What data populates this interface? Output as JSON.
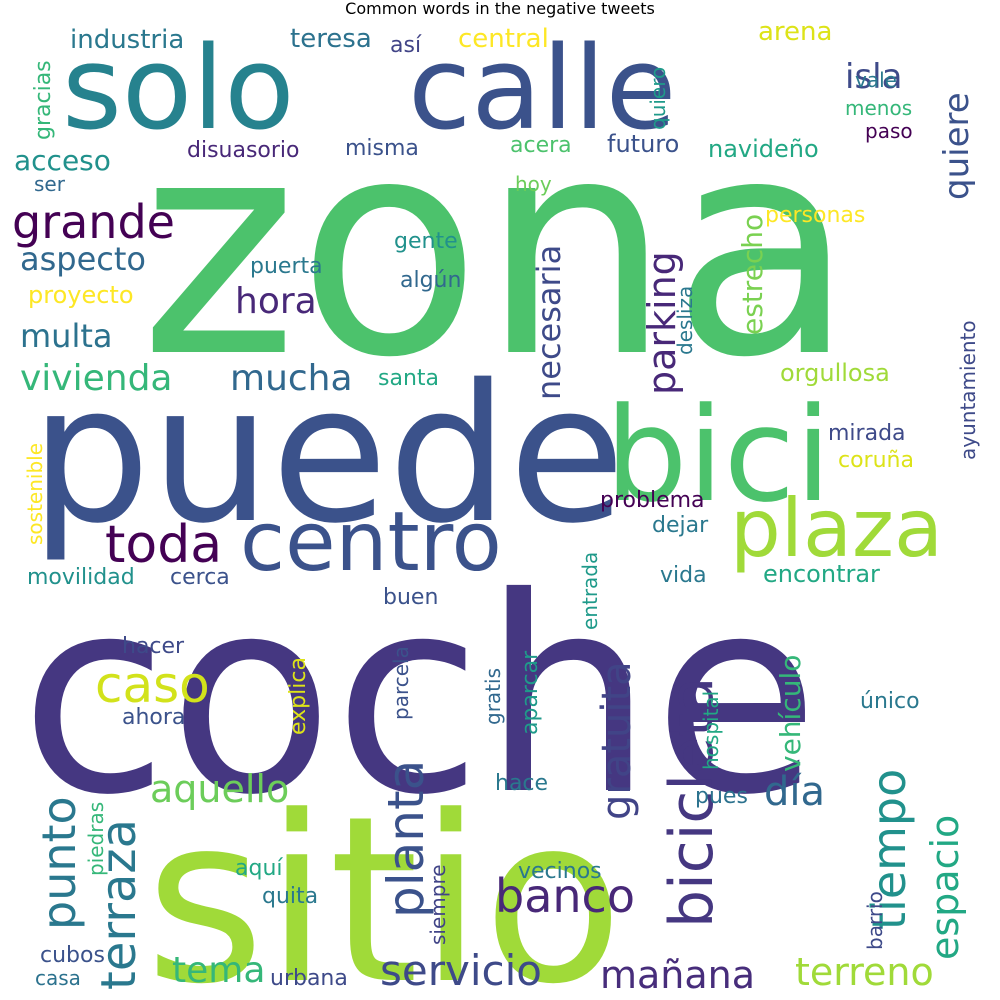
{
  "title": "Common words in the negative tweets",
  "words": [
    {
      "text": "zona",
      "color": "#4cc26c"
    },
    {
      "text": "coche",
      "color": "#453781"
    },
    {
      "text": "sitio",
      "color": "#a0da39"
    },
    {
      "text": "puede",
      "color": "#3b528b"
    },
    {
      "text": "solo",
      "color": "#26828e"
    },
    {
      "text": "calle",
      "color": "#3b528b"
    },
    {
      "text": "bici",
      "color": "#4cc26c"
    },
    {
      "text": "centro",
      "color": "#3b528b"
    },
    {
      "text": "plaza",
      "color": "#a0da39"
    },
    {
      "text": "toda",
      "color": "#440154"
    },
    {
      "text": "grande",
      "color": "#440154"
    },
    {
      "text": "bicicleta",
      "color": "#453781"
    },
    {
      "text": "caso",
      "color": "#d2e21b"
    },
    {
      "text": "planta",
      "color": "#3b528b"
    },
    {
      "text": "terraza",
      "color": "#2a788e"
    },
    {
      "text": "punto",
      "color": "#2a788e"
    },
    {
      "text": "tiempo",
      "color": "#21918c"
    },
    {
      "text": "banco",
      "color": "#482878"
    },
    {
      "text": "servicio",
      "color": "#3e4a89"
    },
    {
      "text": "día",
      "color": "#31688e"
    },
    {
      "text": "aquello",
      "color": "#6ccd5a"
    },
    {
      "text": "mañana",
      "color": "#472d7b"
    },
    {
      "text": "terreno",
      "color": "#a0da39"
    },
    {
      "text": "espacio",
      "color": "#22a884"
    },
    {
      "text": "tema",
      "color": "#35b779"
    },
    {
      "text": "hora",
      "color": "#482878"
    },
    {
      "text": "mucha",
      "color": "#31688e"
    },
    {
      "text": "vivienda",
      "color": "#35b779"
    },
    {
      "text": "multa",
      "color": "#2c728e"
    },
    {
      "text": "aspecto",
      "color": "#31688e"
    },
    {
      "text": "acceso",
      "color": "#21918c"
    },
    {
      "text": "isla",
      "color": "#3e4a89"
    },
    {
      "text": "quiere",
      "color": "#3b528b"
    },
    {
      "text": "parking",
      "color": "#482878"
    },
    {
      "text": "necesaria",
      "color": "#3e4a89"
    },
    {
      "text": "estrecho",
      "color": "#7ad151"
    },
    {
      "text": "gratuita",
      "color": "#414487"
    },
    {
      "text": "vehículo",
      "color": "#35b779"
    },
    {
      "text": "industria",
      "color": "#2a788e"
    },
    {
      "text": "teresa",
      "color": "#2c728e"
    },
    {
      "text": "así",
      "color": "#414487"
    },
    {
      "text": "central",
      "color": "#fde725"
    },
    {
      "text": "arena",
      "color": "#dde318"
    },
    {
      "text": "gracias",
      "color": "#35b779"
    },
    {
      "text": "quiero",
      "color": "#1f9a8a"
    },
    {
      "text": "vale",
      "color": "#2a788e"
    },
    {
      "text": "menos",
      "color": "#35b779"
    },
    {
      "text": "paso",
      "color": "#440154"
    },
    {
      "text": "disuasorio",
      "color": "#482878"
    },
    {
      "text": "misma",
      "color": "#3b528b"
    },
    {
      "text": "acera",
      "color": "#4cc26c"
    },
    {
      "text": "futuro",
      "color": "#3b528b"
    },
    {
      "text": "navideño",
      "color": "#22a884"
    },
    {
      "text": "ser",
      "color": "#31688e"
    },
    {
      "text": "hoy",
      "color": "#6ccd5a"
    },
    {
      "text": "personas",
      "color": "#fde725"
    },
    {
      "text": "gente",
      "color": "#21918c"
    },
    {
      "text": "algún",
      "color": "#31688e"
    },
    {
      "text": "puerta",
      "color": "#2a788e"
    },
    {
      "text": "proyecto",
      "color": "#fde725"
    },
    {
      "text": "desliza",
      "color": "#2a788e"
    },
    {
      "text": "ayuntamiento",
      "color": "#3e4a89"
    },
    {
      "text": "santa",
      "color": "#22a884"
    },
    {
      "text": "orgullosa",
      "color": "#a0da39"
    },
    {
      "text": "sostenible",
      "color": "#fde725"
    },
    {
      "text": "mirada",
      "color": "#3e4a89"
    },
    {
      "text": "coruña",
      "color": "#dde318"
    },
    {
      "text": "problema",
      "color": "#440154"
    },
    {
      "text": "dejar",
      "color": "#2a788e"
    },
    {
      "text": "entrada",
      "color": "#1f9a8a"
    },
    {
      "text": "movilidad",
      "color": "#21918c"
    },
    {
      "text": "cerca",
      "color": "#3b528b"
    },
    {
      "text": "vida",
      "color": "#2a788e"
    },
    {
      "text": "encontrar",
      "color": "#22a884"
    },
    {
      "text": "buen",
      "color": "#3b528b"
    },
    {
      "text": "hacer",
      "color": "#3e4a89"
    },
    {
      "text": "explica",
      "color": "#dde318"
    },
    {
      "text": "parcela",
      "color": "#3b528b"
    },
    {
      "text": "gratis",
      "color": "#31688e"
    },
    {
      "text": "aparcar",
      "color": "#1f9a8a"
    },
    {
      "text": "hospital",
      "color": "#22a884"
    },
    {
      "text": "único",
      "color": "#2a788e"
    },
    {
      "text": "ahora",
      "color": "#3b528b"
    },
    {
      "text": "hace",
      "color": "#2a788e"
    },
    {
      "text": "pues",
      "color": "#2c728e"
    },
    {
      "text": "piedras",
      "color": "#35b779"
    },
    {
      "text": "aquí",
      "color": "#22a884"
    },
    {
      "text": "siempre",
      "color": "#414487"
    },
    {
      "text": "vecinos",
      "color": "#2a788e"
    },
    {
      "text": "quita",
      "color": "#2a788e"
    },
    {
      "text": "barrio",
      "color": "#3e4a89"
    },
    {
      "text": "cubos",
      "color": "#3b528b"
    },
    {
      "text": "casa",
      "color": "#2c728e"
    },
    {
      "text": "urbana",
      "color": "#3e4a89"
    }
  ]
}
